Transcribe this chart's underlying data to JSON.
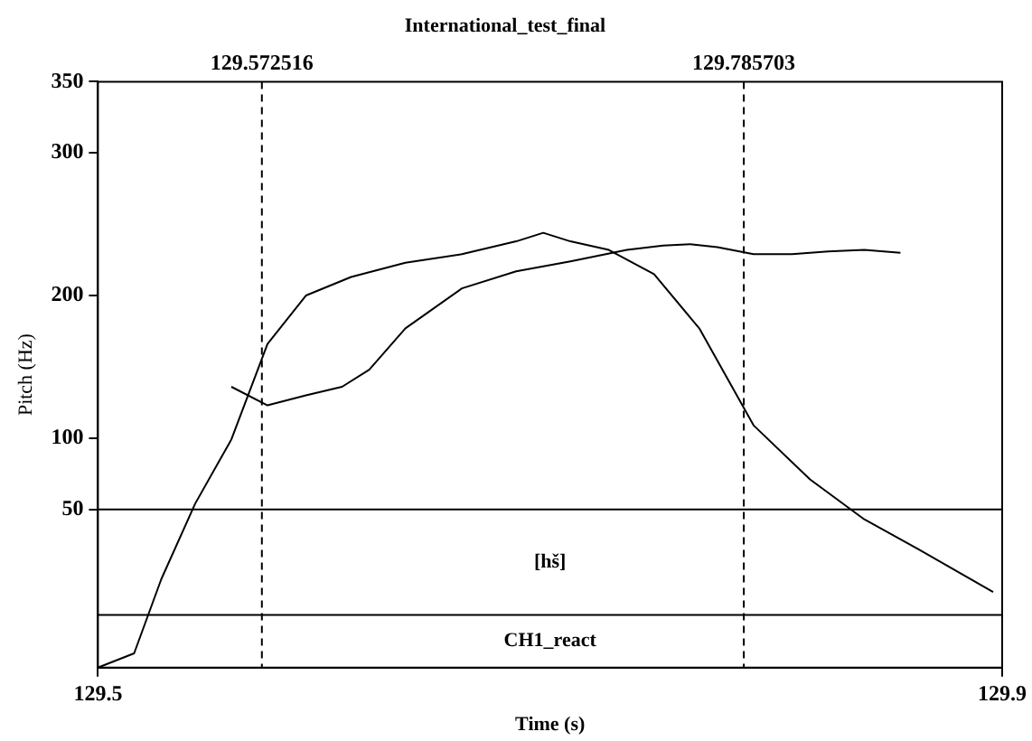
{
  "chart_data": {
    "type": "line",
    "title": "International_test_final",
    "xlabel": "Time (s)",
    "ylabel": "Pitch (Hz)",
    "xlim": [
      129.5,
      129.9
    ],
    "xticks": [
      129.5,
      129.9
    ],
    "ylim": [
      -61,
      350
    ],
    "yticks": [
      50,
      100,
      200,
      300,
      350
    ],
    "grid": false,
    "legend": false,
    "marker": "none",
    "line_style": "solid",
    "series": [
      {
        "color": "#000000",
        "x": [
          129.5,
          129.516,
          129.528,
          129.543,
          129.559,
          129.575,
          129.592,
          129.612,
          129.636,
          129.661,
          129.685,
          129.697,
          129.709,
          129.726,
          129.746,
          129.766,
          129.79,
          129.815,
          129.839,
          129.863,
          129.896
        ],
        "values": [
          -61,
          -51,
          1,
          54,
          99,
          166,
          200,
          213,
          223,
          229,
          238,
          244,
          238,
          232,
          215,
          177,
          109,
          71,
          43,
          22,
          -8
        ]
      },
      {
        "color": "#000000",
        "x": [
          129.559,
          129.575,
          129.592,
          129.608,
          129.62,
          129.636,
          129.661,
          129.685,
          129.709,
          129.734,
          129.75,
          129.762,
          129.774,
          129.79,
          129.807,
          129.823,
          129.839,
          129.855
        ],
        "values": [
          136,
          123,
          130,
          136,
          148,
          177,
          205,
          217,
          224,
          232,
          235,
          236,
          234,
          229,
          229,
          231,
          232,
          230
        ]
      }
    ],
    "ref_lines": [
      {
        "axis": "x",
        "value": 129.572516,
        "label": "129.572516",
        "line_style": "dashed"
      },
      {
        "axis": "x",
        "value": 129.785703,
        "label": "129.785703",
        "line_style": "dashed"
      },
      {
        "axis": "y",
        "value": 50,
        "line_style": "solid"
      },
      {
        "axis": "y",
        "value": -24,
        "line_style": "solid"
      }
    ],
    "annotations": [
      "[hš]",
      "CH1_react"
    ]
  }
}
